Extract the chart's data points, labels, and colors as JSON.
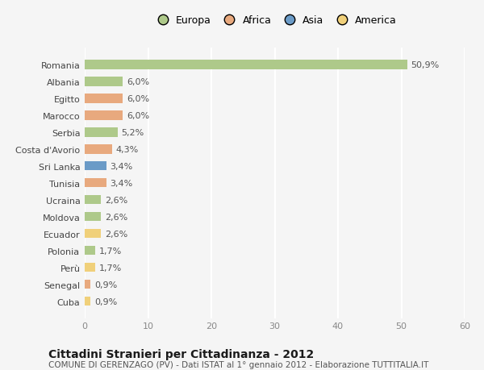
{
  "countries": [
    "Romania",
    "Albania",
    "Egitto",
    "Marocco",
    "Serbia",
    "Costa d'Avorio",
    "Sri Lanka",
    "Tunisia",
    "Ucraina",
    "Moldova",
    "Ecuador",
    "Polonia",
    "Perù",
    "Senegal",
    "Cuba"
  ],
  "values": [
    50.9,
    6.0,
    6.0,
    6.0,
    5.2,
    4.3,
    3.4,
    3.4,
    2.6,
    2.6,
    2.6,
    1.7,
    1.7,
    0.9,
    0.9
  ],
  "labels": [
    "50,9%",
    "6,0%",
    "6,0%",
    "6,0%",
    "5,2%",
    "4,3%",
    "3,4%",
    "3,4%",
    "2,6%",
    "2,6%",
    "2,6%",
    "1,7%",
    "1,7%",
    "0,9%",
    "0,9%"
  ],
  "colors": [
    "#aec98a",
    "#aec98a",
    "#e8a97e",
    "#e8a97e",
    "#aec98a",
    "#e8a97e",
    "#6b9bc7",
    "#e8a97e",
    "#aec98a",
    "#aec98a",
    "#f0d07a",
    "#aec98a",
    "#f0d07a",
    "#e8a97e",
    "#f0d07a"
  ],
  "legend_labels": [
    "Europa",
    "Africa",
    "Asia",
    "America"
  ],
  "legend_colors": [
    "#aec98a",
    "#e8a97e",
    "#6b9bc7",
    "#f0d07a"
  ],
  "xlim": [
    0,
    60
  ],
  "xticks": [
    0,
    10,
    20,
    30,
    40,
    50,
    60
  ],
  "title": "Cittadini Stranieri per Cittadinanza - 2012",
  "subtitle": "COMUNE DI GERENZAGO (PV) - Dati ISTAT al 1° gennaio 2012 - Elaborazione TUTTITALIA.IT",
  "background_color": "#f5f5f5",
  "grid_color": "#ffffff",
  "bar_height": 0.55,
  "label_fontsize": 8,
  "tick_fontsize": 8,
  "title_fontsize": 10,
  "subtitle_fontsize": 7.5
}
